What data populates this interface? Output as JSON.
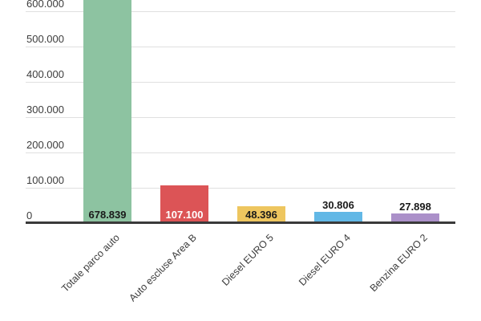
{
  "chart_data": {
    "type": "bar",
    "title": "",
    "xlabel": "",
    "ylabel": "",
    "legend": "none",
    "grid": true,
    "ylim": [
      0,
      600000
    ],
    "categories": [
      "Totale parco auto",
      "Auto escluse Area B",
      "Diesel EURO 5",
      "Diesel EURO 4",
      "Benzina EURO 2"
    ],
    "values": [
      678839,
      107100,
      48396,
      30806,
      27898
    ],
    "value_labels": [
      "678.839",
      "107.100",
      "48.396",
      "30.806",
      "27.898"
    ],
    "bar_colors": [
      "#8dc3a1",
      "#dc5456",
      "#eec65f",
      "#62b8e6",
      "#ab90c9"
    ],
    "value_label_colors": [
      "#1a1a1a",
      "#ffffff",
      "#1a1a1a",
      "#1a1a1a",
      "#1a1a1a"
    ],
    "value_label_position": [
      "inside",
      "inside",
      "inside",
      "above",
      "above"
    ],
    "y_ticks": [
      {
        "label": "600.000",
        "value": 600000
      },
      {
        "label": "500.000",
        "value": 500000
      },
      {
        "label": "400.000",
        "value": 400000
      },
      {
        "label": "300.000",
        "value": 300000
      },
      {
        "label": "200.000",
        "value": 200000
      },
      {
        "label": "100.000",
        "value": 100000
      },
      {
        "label": "0",
        "value": 0
      }
    ],
    "note": "Top of tallest bar is cropped beyond the visible area"
  },
  "colors": {
    "background": "#ffffff",
    "gridline": "#e0e0e0",
    "baseline": "#3a3a3a",
    "axis_text": "#3c3c3c"
  }
}
